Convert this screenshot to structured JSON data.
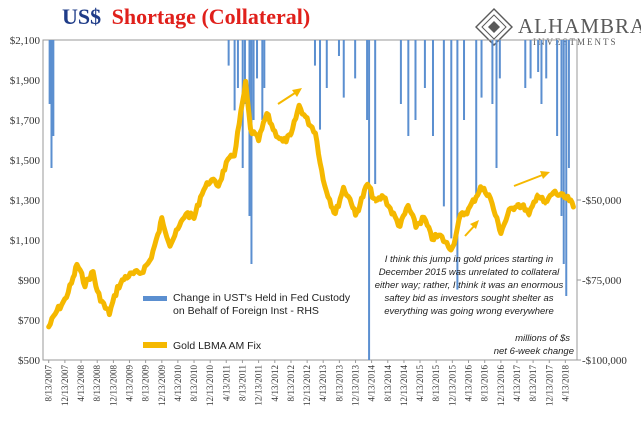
{
  "header": {
    "title_prefix": "US$",
    "title_main": "Shortage (Collateral)",
    "title_prefix_color": "#1f3c88",
    "title_main_color": "#e0201b"
  },
  "logo": {
    "name": "ALHAMBRA",
    "subtitle": "INVESTMENTS",
    "icon": "alhambra-diamond-icon"
  },
  "colors": {
    "gold": "#f5b800",
    "custody": "#5b8fd0"
  },
  "chart_data": {
    "type": "line",
    "x_tick_labels": [
      "8/13/2007",
      "12/13/2007",
      "4/13/2008",
      "8/13/2008",
      "12/13/2008",
      "4/13/2009",
      "8/13/2009",
      "12/13/2009",
      "4/13/2010",
      "8/13/2010",
      "12/13/2010",
      "4/13/2011",
      "8/13/2011",
      "12/13/2011",
      "4/13/2012",
      "8/13/2012",
      "12/13/2012",
      "4/13/2013",
      "8/13/2013",
      "12/13/2013",
      "4/13/2014",
      "8/13/2014",
      "12/13/2014",
      "4/13/2015",
      "8/13/2015",
      "12/13/2015",
      "4/13/2016",
      "8/13/2016",
      "12/13/2016",
      "4/13/2017",
      "8/13/2017",
      "12/13/2017",
      "4/13/2018"
    ],
    "y_left": {
      "ticks": [
        "$2,100",
        "$1,900",
        "$1,700",
        "$1,500",
        "$1,300",
        "$1,100",
        "$900",
        "$700",
        "$500"
      ],
      "range": [
        500,
        2100
      ]
    },
    "y_right": {
      "ticks": [
        "-$50,000",
        "-$75,000",
        "-$100,000"
      ],
      "range": [
        -100000,
        0
      ]
    },
    "series": [
      {
        "name": "Gold LBMA AM Fix",
        "axis": "left",
        "color": "#f5b800",
        "points": [
          [
            "2007-08-13",
            665
          ],
          [
            "2007-10-13",
            745
          ],
          [
            "2007-12-13",
            800
          ],
          [
            "2008-02-13",
            905
          ],
          [
            "2008-03-13",
            980
          ],
          [
            "2008-05-13",
            880
          ],
          [
            "2008-07-13",
            940
          ],
          [
            "2008-08-13",
            840
          ],
          [
            "2008-10-13",
            760
          ],
          [
            "2008-11-13",
            735
          ],
          [
            "2009-01-13",
            860
          ],
          [
            "2009-03-13",
            915
          ],
          [
            "2009-05-13",
            930
          ],
          [
            "2009-07-13",
            940
          ],
          [
            "2009-09-13",
            995
          ],
          [
            "2009-11-13",
            1120
          ],
          [
            "2009-12-13",
            1205
          ],
          [
            "2010-02-13",
            1080
          ],
          [
            "2010-04-13",
            1150
          ],
          [
            "2010-06-13",
            1235
          ],
          [
            "2010-08-13",
            1210
          ],
          [
            "2010-10-13",
            1340
          ],
          [
            "2010-12-13",
            1400
          ],
          [
            "2011-02-13",
            1375
          ],
          [
            "2011-04-13",
            1480
          ],
          [
            "2011-06-13",
            1530
          ],
          [
            "2011-08-13",
            1780
          ],
          [
            "2011-09-06",
            1880
          ],
          [
            "2011-10-13",
            1650
          ],
          [
            "2011-12-13",
            1600
          ],
          [
            "2012-02-13",
            1730
          ],
          [
            "2012-04-13",
            1640
          ],
          [
            "2012-06-13",
            1590
          ],
          [
            "2012-08-13",
            1620
          ],
          [
            "2012-10-13",
            1770
          ],
          [
            "2012-12-13",
            1700
          ],
          [
            "2013-02-13",
            1640
          ],
          [
            "2013-04-13",
            1400
          ],
          [
            "2013-06-13",
            1280
          ],
          [
            "2013-07-13",
            1230
          ],
          [
            "2013-09-13",
            1360
          ],
          [
            "2013-11-13",
            1290
          ],
          [
            "2013-12-13",
            1220
          ],
          [
            "2014-03-13",
            1380
          ],
          [
            "2014-05-13",
            1290
          ],
          [
            "2014-07-13",
            1320
          ],
          [
            "2014-09-13",
            1240
          ],
          [
            "2014-11-13",
            1170
          ],
          [
            "2015-01-13",
            1270
          ],
          [
            "2015-03-13",
            1170
          ],
          [
            "2015-05-13",
            1210
          ],
          [
            "2015-07-13",
            1110
          ],
          [
            "2015-09-13",
            1120
          ],
          [
            "2015-11-13",
            1070
          ],
          [
            "2015-12-13",
            1060
          ],
          [
            "2016-02-13",
            1220
          ],
          [
            "2016-04-13",
            1250
          ],
          [
            "2016-07-13",
            1360
          ],
          [
            "2016-09-13",
            1330
          ],
          [
            "2016-11-13",
            1200
          ],
          [
            "2016-12-13",
            1140
          ],
          [
            "2017-02-13",
            1240
          ],
          [
            "2017-04-13",
            1280
          ],
          [
            "2017-06-13",
            1260
          ],
          [
            "2017-07-13",
            1220
          ],
          [
            "2017-09-13",
            1330
          ],
          [
            "2017-11-13",
            1280
          ],
          [
            "2018-01-13",
            1340
          ],
          [
            "2018-03-13",
            1320
          ],
          [
            "2018-05-13",
            1300
          ],
          [
            "2018-06-13",
            1265
          ]
        ]
      },
      {
        "name": "Change in UST's Held in Fed Custody on Behalf of Foreign Inst - RHS",
        "axis": "right",
        "color": "#5b8fd0",
        "note": "bars hang from the top of the chart (zero line) downward",
        "points": [
          [
            "2007-08-20",
            -20000
          ],
          [
            "2007-09-03",
            -40000
          ],
          [
            "2007-09-17",
            -30000
          ],
          [
            "2011-05-01",
            -8000
          ],
          [
            "2011-06-15",
            -22000
          ],
          [
            "2011-07-10",
            -15000
          ],
          [
            "2011-08-15",
            -40000
          ],
          [
            "2011-09-01",
            -20000
          ],
          [
            "2011-10-05",
            -55000
          ],
          [
            "2011-10-20",
            -70000
          ],
          [
            "2011-11-05",
            -25000
          ],
          [
            "2011-12-01",
            -12000
          ],
          [
            "2012-01-10",
            -25000
          ],
          [
            "2012-01-25",
            -15000
          ],
          [
            "2013-02-10",
            -8000
          ],
          [
            "2013-03-20",
            -28000
          ],
          [
            "2013-05-10",
            -15000
          ],
          [
            "2013-08-10",
            -5000
          ],
          [
            "2013-09-15",
            -18000
          ],
          [
            "2013-12-10",
            -12000
          ],
          [
            "2014-03-10",
            -25000
          ],
          [
            "2014-03-25",
            -100000
          ],
          [
            "2014-05-10",
            -45000
          ],
          [
            "2014-11-20",
            -20000
          ],
          [
            "2015-01-15",
            -30000
          ],
          [
            "2015-03-10",
            -25000
          ],
          [
            "2015-05-20",
            -15000
          ],
          [
            "2015-07-20",
            -30000
          ],
          [
            "2015-10-10",
            -52000
          ],
          [
            "2015-12-05",
            -62000
          ],
          [
            "2016-01-20",
            -78000
          ],
          [
            "2016-03-10",
            -25000
          ],
          [
            "2016-06-10",
            -50000
          ],
          [
            "2016-07-20",
            -18000
          ],
          [
            "2016-10-10",
            -20000
          ],
          [
            "2016-11-10",
            -40000
          ],
          [
            "2016-12-05",
            -12000
          ],
          [
            "2017-06-15",
            -15000
          ],
          [
            "2017-07-25",
            -12000
          ],
          [
            "2017-09-20",
            -10000
          ],
          [
            "2017-10-15",
            -20000
          ],
          [
            "2017-11-20",
            -12000
          ],
          [
            "2018-02-10",
            -30000
          ],
          [
            "2018-03-15",
            -55000
          ],
          [
            "2018-04-01",
            -70000
          ],
          [
            "2018-04-20",
            -80000
          ],
          [
            "2018-05-10",
            -40000
          ]
        ]
      }
    ],
    "legend": [
      {
        "label_lines": [
          "Change in UST's Held in Fed Custody",
          "on Behalf of Foreign Inst - RHS"
        ],
        "color": "#5b8fd0"
      },
      {
        "label_lines": [
          "Gold LBMA AM Fix"
        ],
        "color": "#f5b800"
      }
    ],
    "annotation": {
      "lines": [
        "I think this jump in gold prices starting in",
        "December 2015 was unrelated to collateral",
        "either way; rather, I think it was an enormous",
        "saftey bid as investors sought shelter as",
        "everything was going wrong everywhere"
      ]
    },
    "units_note": [
      "millions of $s",
      "net 6-week change"
    ],
    "grid": false
  }
}
